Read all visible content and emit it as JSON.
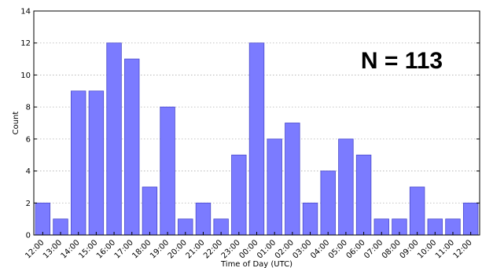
{
  "chart_data": {
    "type": "bar",
    "categories": [
      "12:00",
      "13:00",
      "14:00",
      "15:00",
      "16:00",
      "17:00",
      "18:00",
      "19:00",
      "20:00",
      "21:00",
      "22:00",
      "23:00",
      "00:00",
      "01:00",
      "02:00",
      "03:00",
      "04:00",
      "05:00",
      "06:00",
      "07:00",
      "08:00",
      "09:00",
      "10:00",
      "11:00",
      "12:00"
    ],
    "values": [
      2,
      1,
      9,
      9,
      12,
      11,
      3,
      8,
      1,
      2,
      1,
      5,
      12,
      6,
      7,
      2,
      4,
      6,
      5,
      1,
      1,
      3,
      1,
      1,
      2
    ],
    "title": "",
    "xlabel": "Time of Day (UTC)",
    "ylabel": "Count",
    "ylim": [
      0,
      14
    ],
    "yticks": [
      0,
      2,
      4,
      6,
      8,
      10,
      12,
      14
    ],
    "grid": true,
    "annotations": [
      {
        "text": "N = 113"
      }
    ],
    "colors": {
      "bar_fill": "#7b7bff",
      "bar_edge": "#4a4acc"
    }
  }
}
